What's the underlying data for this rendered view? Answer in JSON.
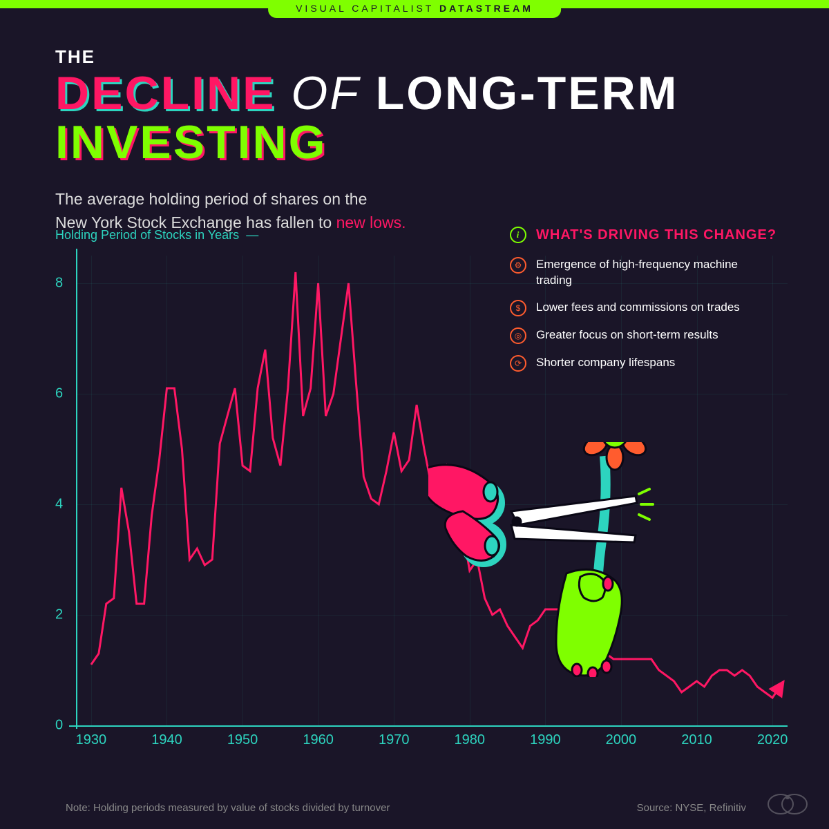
{
  "header": {
    "brand_light": "VISUAL CAPITALIST",
    "brand_bold": "DATASTREAM"
  },
  "title": {
    "the": "THE",
    "decline": "DECLINE",
    "of": "OF",
    "longterm": "LONG-TERM",
    "investing": "INVESTING"
  },
  "subtitle": {
    "line1": "The average holding period of shares on the",
    "line2_pre": "New York Stock Exchange has fallen to ",
    "line2_highlight": "new lows."
  },
  "chart": {
    "type": "line",
    "label": "Holding Period of Stocks in Years",
    "label_dash": "—",
    "line_color": "#ff1764",
    "line_width": 3,
    "axis_color": "#2dd4bf",
    "grid_color": "rgba(45,212,191,0.08)",
    "background_color": "#1a1528",
    "xlim": [
      1928,
      2022
    ],
    "ylim": [
      0,
      8.5
    ],
    "y_ticks": [
      0,
      2,
      4,
      6,
      8
    ],
    "x_ticks": [
      1930,
      1940,
      1950,
      1960,
      1970,
      1980,
      1990,
      2000,
      2010,
      2020
    ],
    "data": [
      [
        1930,
        1.1
      ],
      [
        1931,
        1.3
      ],
      [
        1932,
        2.2
      ],
      [
        1933,
        2.3
      ],
      [
        1934,
        4.3
      ],
      [
        1935,
        3.5
      ],
      [
        1936,
        2.2
      ],
      [
        1937,
        2.2
      ],
      [
        1938,
        3.8
      ],
      [
        1939,
        4.8
      ],
      [
        1940,
        6.1
      ],
      [
        1941,
        6.1
      ],
      [
        1942,
        5.0
      ],
      [
        1943,
        3.0
      ],
      [
        1944,
        3.2
      ],
      [
        1945,
        2.9
      ],
      [
        1946,
        3.0
      ],
      [
        1947,
        5.1
      ],
      [
        1948,
        5.6
      ],
      [
        1949,
        6.1
      ],
      [
        1950,
        4.7
      ],
      [
        1951,
        4.6
      ],
      [
        1952,
        6.1
      ],
      [
        1953,
        6.8
      ],
      [
        1954,
        5.2
      ],
      [
        1955,
        4.7
      ],
      [
        1956,
        6.1
      ],
      [
        1957,
        8.2
      ],
      [
        1958,
        5.6
      ],
      [
        1959,
        6.1
      ],
      [
        1960,
        8.0
      ],
      [
        1961,
        5.6
      ],
      [
        1962,
        6.0
      ],
      [
        1963,
        7.0
      ],
      [
        1964,
        8.0
      ],
      [
        1965,
        6.2
      ],
      [
        1966,
        4.5
      ],
      [
        1967,
        4.1
      ],
      [
        1968,
        4.0
      ],
      [
        1969,
        4.6
      ],
      [
        1970,
        5.3
      ],
      [
        1971,
        4.6
      ],
      [
        1972,
        4.8
      ],
      [
        1973,
        5.8
      ],
      [
        1974,
        5.0
      ],
      [
        1975,
        4.3
      ],
      [
        1976,
        4.1
      ],
      [
        1977,
        4.7
      ],
      [
        1978,
        4.5
      ],
      [
        1979,
        3.6
      ],
      [
        1980,
        2.8
      ],
      [
        1981,
        3.0
      ],
      [
        1982,
        2.3
      ],
      [
        1983,
        2.0
      ],
      [
        1984,
        2.1
      ],
      [
        1985,
        1.8
      ],
      [
        1986,
        1.6
      ],
      [
        1987,
        1.4
      ],
      [
        1988,
        1.8
      ],
      [
        1989,
        1.9
      ],
      [
        1990,
        2.1
      ],
      [
        1991,
        2.1
      ],
      [
        1992,
        2.1
      ],
      [
        1993,
        1.9
      ],
      [
        1994,
        1.8
      ],
      [
        1995,
        1.7
      ],
      [
        1996,
        1.5
      ],
      [
        1997,
        1.4
      ],
      [
        1998,
        1.3
      ],
      [
        1999,
        1.2
      ],
      [
        2000,
        1.2
      ],
      [
        2001,
        1.2
      ],
      [
        2002,
        1.2
      ],
      [
        2003,
        1.2
      ],
      [
        2004,
        1.2
      ],
      [
        2005,
        1.0
      ],
      [
        2006,
        0.9
      ],
      [
        2007,
        0.8
      ],
      [
        2008,
        0.6
      ],
      [
        2009,
        0.7
      ],
      [
        2010,
        0.8
      ],
      [
        2011,
        0.7
      ],
      [
        2012,
        0.9
      ],
      [
        2013,
        1.0
      ],
      [
        2014,
        1.0
      ],
      [
        2015,
        0.9
      ],
      [
        2016,
        1.0
      ],
      [
        2017,
        0.9
      ],
      [
        2018,
        0.7
      ],
      [
        2019,
        0.6
      ],
      [
        2020,
        0.5
      ],
      [
        2021,
        0.7
      ]
    ]
  },
  "info": {
    "title": "WHAT'S DRIVING THIS CHANGE?",
    "items": [
      {
        "icon": "gear",
        "text": "Emergence of high-frequency machine trading"
      },
      {
        "icon": "dollar",
        "text": "Lower fees and commissions on trades"
      },
      {
        "icon": "target",
        "text": "Greater focus on short-term results"
      },
      {
        "icon": "cycle",
        "text": "Shorter company lifespans"
      }
    ]
  },
  "footer": {
    "note": "Note: Holding periods measured by value of stocks divided by turnover",
    "source": "Source: NYSE, Refinitiv"
  },
  "colors": {
    "bg": "#1a1528",
    "green": "#7fff00",
    "pink": "#ff1764",
    "teal": "#2dd4bf",
    "orange": "#ff5c2e",
    "white": "#ffffff"
  },
  "illustration": {
    "hand_pink": "#ff1764",
    "hand_green": "#7fff00",
    "scissors": "#ffffff",
    "scissors_handle": "#2dd4bf",
    "flower_petals": "#ff5c2e",
    "flower_center": "#7fff00",
    "stem": "#2dd4bf",
    "nails": "#ff1764",
    "outline": "#0a0815"
  }
}
